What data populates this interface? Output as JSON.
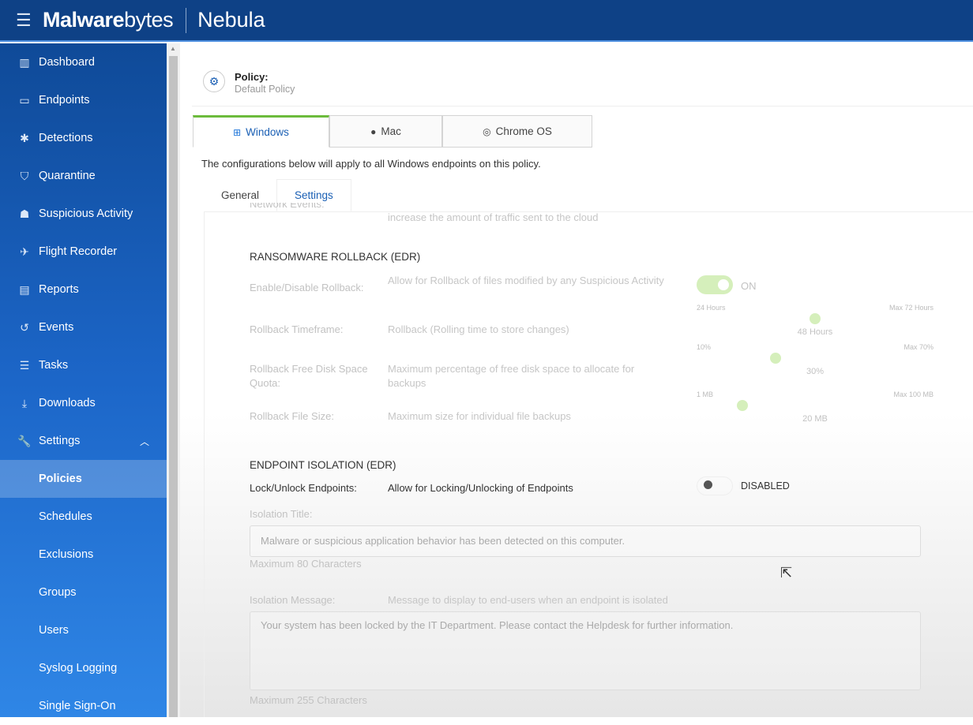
{
  "app": {
    "brand_bold": "Malware",
    "brand_light": "bytes",
    "product": "Nebula"
  },
  "sidebar": {
    "items": [
      {
        "label": "Dashboard",
        "icon": "bar-chart-icon",
        "glyph": "▥"
      },
      {
        "label": "Endpoints",
        "icon": "monitor-icon",
        "glyph": "▭"
      },
      {
        "label": "Detections",
        "icon": "bug-icon",
        "glyph": "✱"
      },
      {
        "label": "Quarantine",
        "icon": "shield-icon",
        "glyph": "⛉"
      },
      {
        "label": "Suspicious Activity",
        "icon": "spy-icon",
        "glyph": "☗"
      },
      {
        "label": "Flight Recorder",
        "icon": "paper-plane-icon",
        "glyph": "✈"
      },
      {
        "label": "Reports",
        "icon": "document-icon",
        "glyph": "▤"
      },
      {
        "label": "Events",
        "icon": "history-icon",
        "glyph": "↺"
      },
      {
        "label": "Tasks",
        "icon": "list-icon",
        "glyph": "☰"
      },
      {
        "label": "Downloads",
        "icon": "download-icon",
        "glyph": "⤓"
      },
      {
        "label": "Settings",
        "icon": "wrench-icon",
        "glyph": "🔧"
      }
    ],
    "sub_items": [
      "Policies",
      "Schedules",
      "Exclusions",
      "Groups",
      "Users",
      "Syslog Logging",
      "Single Sign-On"
    ],
    "active": "Policies"
  },
  "policy": {
    "title": "Policy:",
    "name": "Default Policy"
  },
  "os_tabs": [
    {
      "label": "Windows",
      "glyph": "⊞",
      "icon": "windows-icon"
    },
    {
      "label": "Mac",
      "glyph": "",
      "icon": "apple-icon"
    },
    {
      "label": "Chrome OS",
      "glyph": "◎",
      "icon": "chrome-icon"
    }
  ],
  "note": "The configurations below will apply to all Windows endpoints on this policy.",
  "sub_tabs": [
    "General",
    "Settings"
  ],
  "partial": {
    "label": "Network Events:",
    "desc": "increase the amount of traffic sent to the cloud"
  },
  "rollback": {
    "heading": "RANSOMWARE ROLLBACK (EDR)",
    "enable": {
      "label": "Enable/Disable Rollback:",
      "desc": "Allow for Rollback of files modified by any Suspicious Activity",
      "state": "ON",
      "on": true
    },
    "timeframe": {
      "label": "Rollback Timeframe:",
      "desc": "Rollback (Rolling time to store changes)",
      "min_label": "24 Hours",
      "max_label": "Max 72 Hours",
      "value_label": "48 Hours",
      "min": 24,
      "max": 72,
      "value": 48
    },
    "quota": {
      "label": "Rollback Free Disk Space Quota:",
      "desc": "Maximum percentage of free disk space to allocate for backups",
      "min_label": "10%",
      "max_label": "Max 70%",
      "value_label": "30%",
      "min": 10,
      "max": 70,
      "value": 30
    },
    "filesize": {
      "label": "Rollback File Size:",
      "desc": "Maximum size for individual file backups",
      "min_label": "1 MB",
      "max_label": "Max 100 MB",
      "value_label": "20 MB",
      "min": 1,
      "max": 100,
      "value": 20
    },
    "accent": "#8fd25a"
  },
  "isolation": {
    "heading": "ENDPOINT ISOLATION (EDR)",
    "lock": {
      "label": "Lock/Unlock Endpoints:",
      "desc": "Allow for Locking/Unlocking of Endpoints",
      "state": "DISABLED",
      "on": false
    },
    "title_label": "Isolation Title:",
    "title_value": "Malware or suspicious application behavior has been detected on this computer.",
    "title_hint": "Maximum 80 Characters",
    "message_label": "Isolation Message:",
    "message_desc": "Message to display to end-users when an endpoint is isolated",
    "message_value": "Your system has been locked by the IT Department. Please contact the Helpdesk for further information.",
    "message_hint": "Maximum 255 Characters"
  }
}
